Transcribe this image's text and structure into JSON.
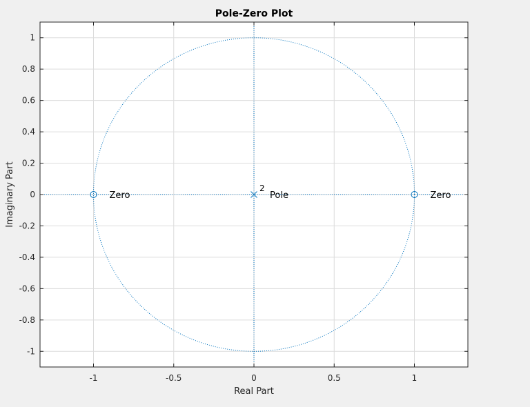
{
  "chart_data": {
    "type": "scatter",
    "title": "Pole-Zero Plot",
    "xlabel": "Real Part",
    "ylabel": "Imaginary Part",
    "xlim": [
      -1.3333,
      1.3333
    ],
    "ylim": [
      -1.1,
      1.1
    ],
    "x_ticks": [
      -1,
      -0.5,
      0,
      0.5,
      1
    ],
    "x_tick_labels": [
      "-1",
      "-0.5",
      "0",
      "0.5",
      "1"
    ],
    "y_ticks": [
      1,
      0.8,
      0.6,
      0.4,
      0.2,
      0,
      -0.2,
      -0.4,
      -0.6,
      -0.8,
      -1
    ],
    "y_tick_labels": [
      "1",
      "0.8",
      "0.6",
      "0.4",
      "0.2",
      "0",
      "-0.2",
      "-0.4",
      "-0.6",
      "-0.8",
      "-1"
    ],
    "grid": true,
    "unit_circle": true,
    "series": [
      {
        "name": "Zero",
        "marker": "circle",
        "points": [
          {
            "x": -1,
            "y": 0
          },
          {
            "x": 1,
            "y": 0
          }
        ]
      },
      {
        "name": "Pole",
        "marker": "cross",
        "points": [
          {
            "x": 0,
            "y": 0
          }
        ],
        "multiplicity": "2"
      }
    ],
    "annotations": [
      {
        "text": "Zero",
        "x": -1,
        "y": 0
      },
      {
        "text": "Pole",
        "x": 0,
        "y": 0
      },
      {
        "text": "Zero",
        "x": 1,
        "y": 0
      }
    ],
    "colors": {
      "marker": "#0072bd",
      "grid": "#dcdcdc",
      "axes_bg": "#ffffff",
      "figure_bg": "#f0f0f0"
    }
  }
}
